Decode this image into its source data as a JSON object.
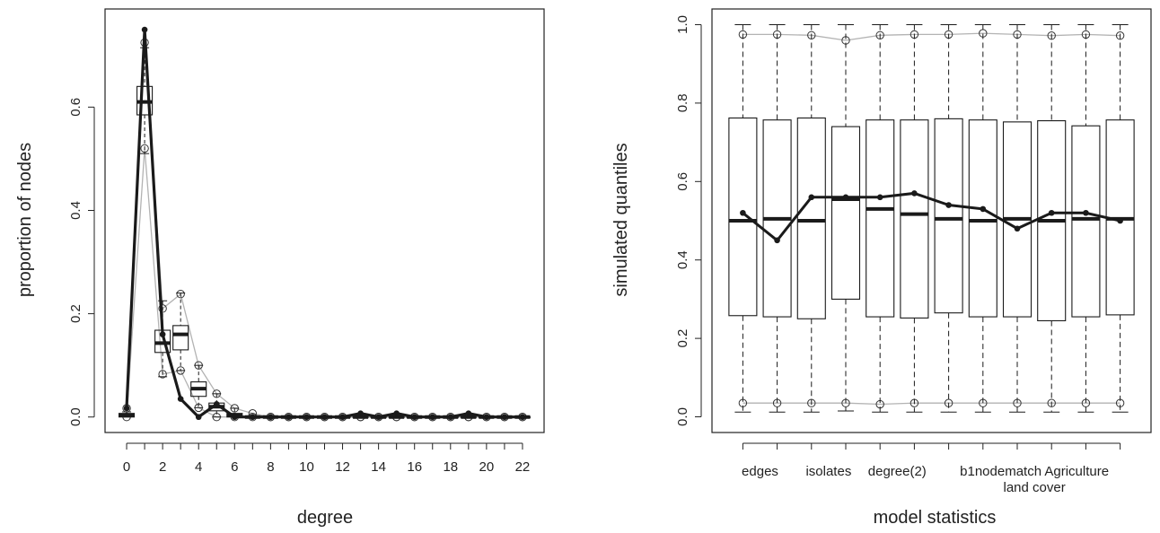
{
  "colors": {
    "observed": "#1a1a1a",
    "envelope": "#b3b3b3",
    "box": "#1a1a1a",
    "background": "#ffffff"
  },
  "chart_data": [
    {
      "type": "box-line",
      "name": "degree-distribution",
      "xlabel": "degree",
      "ylabel": "proportion of nodes",
      "x": [
        0,
        1,
        2,
        3,
        4,
        5,
        6,
        7,
        8,
        9,
        10,
        11,
        12,
        13,
        14,
        15,
        16,
        17,
        18,
        19,
        20,
        21,
        22
      ],
      "x_ticks": [
        0,
        2,
        4,
        6,
        8,
        10,
        12,
        14,
        16,
        18,
        20,
        22
      ],
      "y_ticks": [
        0.0,
        0.2,
        0.4,
        0.6
      ],
      "y_tick_labels": [
        "0.0",
        "0.2",
        "0.4",
        "0.6"
      ],
      "xlim": [
        -1.2,
        23.2
      ],
      "ylim": [
        -0.03,
        0.79
      ],
      "observed": [
        0.017,
        0.75,
        0.16,
        0.035,
        0.0,
        0.025,
        0.0,
        0.0,
        0.0,
        0.0,
        0.0,
        0.0,
        0.0,
        0.007,
        0.0,
        0.007,
        0.0,
        0.0,
        0.0,
        0.007,
        0.0,
        0.0,
        0.0
      ],
      "upper": [
        0.017,
        0.725,
        0.21,
        0.238,
        0.1,
        0.045,
        0.017,
        0.007,
        0.0,
        0.0,
        0.0,
        0.0,
        0.0,
        0.0,
        0.0,
        0.0,
        0.0,
        0.0,
        0.0,
        0.0,
        0.0,
        0.0,
        0.0
      ],
      "lower": [
        0.0,
        0.52,
        0.083,
        0.09,
        0.018,
        0.0,
        0.0,
        0.0,
        0.0,
        0.0,
        0.0,
        0.0,
        0.0,
        0.0,
        0.0,
        0.0,
        0.0,
        0.0,
        0.0,
        0.0,
        0.0,
        0.0,
        0.0
      ],
      "boxes": [
        {
          "x": 0,
          "whisker_low": 0.0,
          "q1": 0.0,
          "median": 0.003,
          "q3": 0.007,
          "whisker_high": 0.01
        },
        {
          "x": 1,
          "whisker_low": 0.51,
          "q1": 0.585,
          "median": 0.61,
          "q3": 0.64,
          "whisker_high": 0.715
        },
        {
          "x": 2,
          "whisker_low": 0.078,
          "q1": 0.125,
          "median": 0.143,
          "q3": 0.168,
          "whisker_high": 0.225
        },
        {
          "x": 3,
          "whisker_low": 0.09,
          "q1": 0.13,
          "median": 0.16,
          "q3": 0.177,
          "whisker_high": 0.24
        },
        {
          "x": 4,
          "whisker_low": 0.018,
          "q1": 0.04,
          "median": 0.055,
          "q3": 0.068,
          "whisker_high": 0.1
        },
        {
          "x": 5,
          "whisker_low": 0.0,
          "q1": 0.012,
          "median": 0.02,
          "q3": 0.027,
          "whisker_high": 0.045
        },
        {
          "x": 6,
          "whisker_low": 0.0,
          "q1": 0.0,
          "median": 0.003,
          "q3": 0.007,
          "whisker_high": 0.017
        },
        {
          "x": 7,
          "whisker_low": 0.0,
          "q1": 0.0,
          "median": 0.0,
          "q3": 0.0,
          "whisker_high": 0.003
        },
        {
          "x": 8,
          "whisker_low": 0.0,
          "q1": 0.0,
          "median": 0.0,
          "q3": 0.0,
          "whisker_high": 0.0
        },
        {
          "x": 9,
          "whisker_low": 0.0,
          "q1": 0.0,
          "median": 0.0,
          "q3": 0.0,
          "whisker_high": 0.0
        },
        {
          "x": 10,
          "whisker_low": 0.0,
          "q1": 0.0,
          "median": 0.0,
          "q3": 0.0,
          "whisker_high": 0.0
        },
        {
          "x": 11,
          "whisker_low": 0.0,
          "q1": 0.0,
          "median": 0.0,
          "q3": 0.0,
          "whisker_high": 0.0
        },
        {
          "x": 12,
          "whisker_low": 0.0,
          "q1": 0.0,
          "median": 0.0,
          "q3": 0.0,
          "whisker_high": 0.0
        },
        {
          "x": 13,
          "whisker_low": 0.0,
          "q1": 0.0,
          "median": 0.0,
          "q3": 0.0,
          "whisker_high": 0.0
        },
        {
          "x": 14,
          "whisker_low": 0.0,
          "q1": 0.0,
          "median": 0.0,
          "q3": 0.0,
          "whisker_high": 0.0
        },
        {
          "x": 15,
          "whisker_low": 0.0,
          "q1": 0.0,
          "median": 0.0,
          "q3": 0.0,
          "whisker_high": 0.0
        },
        {
          "x": 16,
          "whisker_low": 0.0,
          "q1": 0.0,
          "median": 0.0,
          "q3": 0.0,
          "whisker_high": 0.0
        },
        {
          "x": 17,
          "whisker_low": 0.0,
          "q1": 0.0,
          "median": 0.0,
          "q3": 0.0,
          "whisker_high": 0.0
        },
        {
          "x": 18,
          "whisker_low": 0.0,
          "q1": 0.0,
          "median": 0.0,
          "q3": 0.0,
          "whisker_high": 0.0
        },
        {
          "x": 19,
          "whisker_low": 0.0,
          "q1": 0.0,
          "median": 0.0,
          "q3": 0.0,
          "whisker_high": 0.0
        },
        {
          "x": 20,
          "whisker_low": 0.0,
          "q1": 0.0,
          "median": 0.0,
          "q3": 0.0,
          "whisker_high": 0.0
        },
        {
          "x": 21,
          "whisker_low": 0.0,
          "q1": 0.0,
          "median": 0.0,
          "q3": 0.0,
          "whisker_high": 0.0
        },
        {
          "x": 22,
          "whisker_low": 0.0,
          "q1": 0.0,
          "median": 0.0,
          "q3": 0.0,
          "whisker_high": 0.0
        }
      ]
    },
    {
      "type": "box-line",
      "name": "model-statistics",
      "xlabel": "model statistics",
      "ylabel": "simulated quantiles",
      "categories": [
        "edges",
        "isolates",
        "degree(2)",
        "b1nodematch Agriculture land cover"
      ],
      "category_label_lines": [
        [
          "edges"
        ],
        [
          "isolates"
        ],
        [
          "degree(2)"
        ],
        [
          "b1nodematch Agriculture",
          "land cover"
        ]
      ],
      "category_positions": [
        1.5,
        3.5,
        5.5,
        9.5
      ],
      "x": [
        1,
        2,
        3,
        4,
        5,
        6,
        7,
        8,
        9,
        10,
        11,
        12
      ],
      "y_ticks": [
        0.0,
        0.2,
        0.4,
        0.6,
        0.8,
        1.0
      ],
      "y_tick_labels": [
        "0.0",
        "0.2",
        "0.4",
        "0.6",
        "0.8",
        "1.0"
      ],
      "xlim": [
        0.1,
        12.9
      ],
      "ylim": [
        -0.04,
        1.04
      ],
      "observed": [
        0.52,
        0.45,
        0.56,
        0.56,
        0.56,
        0.57,
        0.54,
        0.53,
        0.48,
        0.52,
        0.52,
        0.5
      ],
      "upper": [
        0.975,
        0.975,
        0.973,
        0.96,
        0.973,
        0.975,
        0.975,
        0.978,
        0.975,
        0.972,
        0.975,
        0.972
      ],
      "lower": [
        0.035,
        0.035,
        0.035,
        0.035,
        0.032,
        0.035,
        0.035,
        0.035,
        0.035,
        0.035,
        0.035,
        0.035
      ],
      "boxes": [
        {
          "x": 1,
          "whisker_low": 0.012,
          "q1": 0.258,
          "median": 0.5,
          "q3": 0.762,
          "whisker_high": 1.0
        },
        {
          "x": 2,
          "whisker_low": 0.012,
          "q1": 0.255,
          "median": 0.505,
          "q3": 0.757,
          "whisker_high": 1.0
        },
        {
          "x": 3,
          "whisker_low": 0.012,
          "q1": 0.25,
          "median": 0.5,
          "q3": 0.762,
          "whisker_high": 1.0
        },
        {
          "x": 4,
          "whisker_low": 0.015,
          "q1": 0.3,
          "median": 0.555,
          "q3": 0.74,
          "whisker_high": 1.0
        },
        {
          "x": 5,
          "whisker_low": 0.012,
          "q1": 0.255,
          "median": 0.53,
          "q3": 0.757,
          "whisker_high": 1.0
        },
        {
          "x": 6,
          "whisker_low": 0.012,
          "q1": 0.252,
          "median": 0.517,
          "q3": 0.757,
          "whisker_high": 1.0
        },
        {
          "x": 7,
          "whisker_low": 0.012,
          "q1": 0.265,
          "median": 0.505,
          "q3": 0.76,
          "whisker_high": 1.0
        },
        {
          "x": 8,
          "whisker_low": 0.012,
          "q1": 0.255,
          "median": 0.5,
          "q3": 0.757,
          "whisker_high": 1.0
        },
        {
          "x": 9,
          "whisker_low": 0.012,
          "q1": 0.255,
          "median": 0.505,
          "q3": 0.752,
          "whisker_high": 1.0
        },
        {
          "x": 10,
          "whisker_low": 0.012,
          "q1": 0.245,
          "median": 0.5,
          "q3": 0.755,
          "whisker_high": 1.0
        },
        {
          "x": 11,
          "whisker_low": 0.012,
          "q1": 0.255,
          "median": 0.505,
          "q3": 0.742,
          "whisker_high": 1.0
        },
        {
          "x": 12,
          "whisker_low": 0.012,
          "q1": 0.26,
          "median": 0.505,
          "q3": 0.757,
          "whisker_high": 1.0
        }
      ]
    }
  ]
}
